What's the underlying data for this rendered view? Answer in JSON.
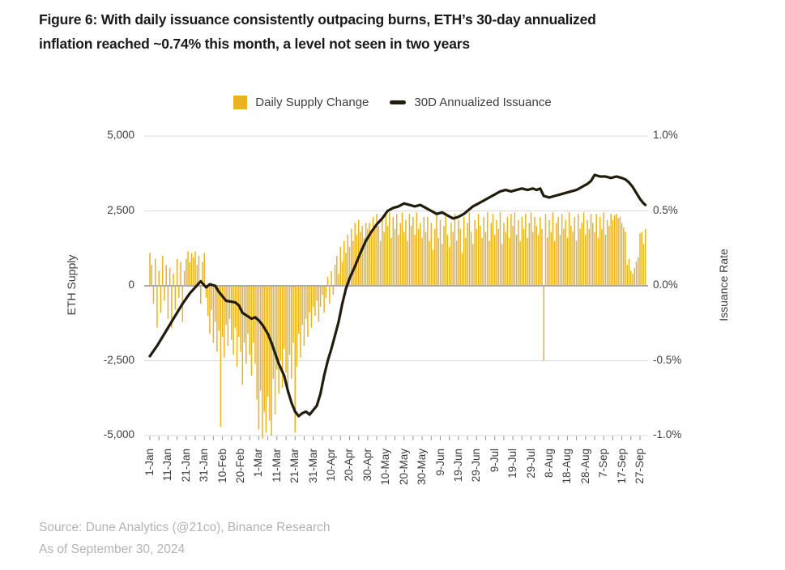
{
  "figure": {
    "title_lines": [
      "Figure 6: With daily issuance consistently outpacing burns, ETH’s 30-day annualized",
      "inflation reached ~0.74% this month, a level not seen in two years"
    ]
  },
  "legend": {
    "items": [
      {
        "label": "Daily Supply Change",
        "swatch": "square",
        "color": "#E9B320"
      },
      {
        "label": "30D Annualized Issuance",
        "swatch": "dash",
        "color": "#221C0D"
      }
    ]
  },
  "source": {
    "line1": "Source: Dune Analytics (@21co), Binance Research",
    "line2": "As of September 30, 2024"
  },
  "chart_data": {
    "type": "bar+line",
    "title": "ETH daily supply change vs 30-day annualized issuance, 1-Jan to 30-Sep 2024",
    "grid": true,
    "legend_position": "top-center",
    "left_axis": {
      "label": "ETH Supply",
      "ticks": [
        "5,000",
        "2,500",
        "0",
        "-2,500",
        "-5,000"
      ],
      "range": [
        -5000,
        5000
      ]
    },
    "right_axis": {
      "label": "Issuance Rate",
      "ticks": [
        "1.0%",
        "0.5%",
        "0.0%",
        "-0.5%",
        "-1.0%"
      ],
      "range": [
        -1.0,
        1.0
      ]
    },
    "x_axis": {
      "tick_labels": [
        "1-Jan",
        "11-Jan",
        "21-Jan",
        "31-Jan",
        "10-Feb",
        "20-Feb",
        "1-Mar",
        "11-Mar",
        "21-Mar",
        "31-Mar",
        "10-Apr",
        "20-Apr",
        "30-Apr",
        "10-May",
        "20-May",
        "30-May",
        "9-Jun",
        "19-Jun",
        "29-Jun",
        "9-Jul",
        "19-Jul",
        "29-Jul",
        "8-Aug",
        "18-Aug",
        "28-Aug",
        "7-Sep",
        "17-Sep",
        "27-Sep"
      ],
      "tick_day_indices": [
        0,
        10,
        20,
        30,
        40,
        50,
        60,
        70,
        80,
        90,
        100,
        110,
        120,
        130,
        140,
        150,
        160,
        170,
        180,
        190,
        200,
        210,
        220,
        230,
        240,
        250,
        260,
        270
      ]
    },
    "bar_series": {
      "name": "Daily Supply Change",
      "axis": "left",
      "unit": "ETH",
      "color": "#E9B320",
      "daily_values": [
        1100,
        700,
        -600,
        900,
        -1400,
        500,
        -900,
        1000,
        -500,
        700,
        -1100,
        600,
        -1400,
        400,
        -800,
        900,
        -400,
        800,
        -1200,
        500,
        900,
        1150,
        800,
        1100,
        950,
        1150,
        700,
        1000,
        -600,
        800,
        1100,
        -400,
        -1000,
        -1600,
        -800,
        -1900,
        -1200,
        -2200,
        -1500,
        -4700,
        -1700,
        -2400,
        -1300,
        -2000,
        -1100,
        -1800,
        -2300,
        -1400,
        -2700,
        -1700,
        -2200,
        -3300,
        -1900,
        -2600,
        -1600,
        -2300,
        -3000,
        -1900,
        -2600,
        -3800,
        -4800,
        -3500,
        -5100,
        -4200,
        -4900,
        -3700,
        -4500,
        -5000,
        -3100,
        -4300,
        -2800,
        -3600,
        -2500,
        -3400,
        -2100,
        -2900,
        -3600,
        -2300,
        -3100,
        -1900,
        -4900,
        -2700,
        -1600,
        -2400,
        -1300,
        -2000,
        -1100,
        -1700,
        -900,
        -1400,
        -700,
        -1000,
        -500,
        -1200,
        -700,
        -300,
        -900,
        -400,
        300,
        -600,
        500,
        -300,
        700,
        1000,
        400,
        1300,
        800,
        1500,
        1100,
        1700,
        1300,
        1900,
        1500,
        2100,
        1700,
        2200,
        1800,
        2000,
        1600,
        2100,
        1900,
        2100,
        1700,
        2300,
        1900,
        2400,
        2000,
        1500,
        2200,
        1800,
        2400,
        2000,
        2450,
        1600,
        2300,
        1900,
        2400,
        1700,
        2100,
        2450,
        1800,
        2200,
        1500,
        2400,
        2000,
        2300,
        1700,
        2450,
        1900,
        2100,
        1600,
        2300,
        1800,
        2300,
        1500,
        2100,
        1200,
        1900,
        2400,
        1600,
        2200,
        1400,
        2000,
        2450,
        1700,
        1300,
        2100,
        1800,
        2400,
        1500,
        2200,
        1900,
        1100,
        2300,
        1600,
        2100,
        2450,
        1800,
        1400,
        2200,
        1900,
        2400,
        2000,
        1600,
        2300,
        1800,
        2450,
        1500,
        2100,
        2400,
        1700,
        2200,
        1900,
        2450,
        1400,
        2100,
        1800,
        2300,
        1600,
        2400,
        2000,
        2450,
        1700,
        2200,
        1500,
        2300,
        1900,
        2400,
        1600,
        2100,
        2450,
        1800,
        2300,
        2000,
        1700,
        2300,
        1900,
        -2500,
        2400,
        1600,
        2200,
        1800,
        2450,
        1500,
        2100,
        2300,
        1700,
        2400,
        1900,
        2200,
        1600,
        2450,
        2000,
        1800,
        2300,
        1500,
        2400,
        1900,
        2100,
        2450,
        1700,
        2200,
        1900,
        2400,
        2100,
        1800,
        2400,
        1600,
        2300,
        1900,
        2450,
        1700,
        2200,
        2000,
        2400,
        2200,
        2350,
        2400,
        2250,
        2300,
        2100,
        1950,
        1800,
        700,
        900,
        500,
        400,
        600,
        800,
        950,
        1750,
        1800,
        1400,
        1900
      ]
    },
    "line_series": {
      "name": "30D Annualized Issuance",
      "axis": "right",
      "unit": "%",
      "color": "#221C0D",
      "peak_value_pct": 0.74,
      "points": [
        [
          0,
          -0.47
        ],
        [
          4,
          -0.4
        ],
        [
          9,
          -0.3
        ],
        [
          13,
          -0.22
        ],
        [
          18,
          -0.12
        ],
        [
          22,
          -0.05
        ],
        [
          25,
          -0.01
        ],
        [
          28,
          0.03
        ],
        [
          31,
          -0.01
        ],
        [
          33,
          0.01
        ],
        [
          36,
          0.0
        ],
        [
          38,
          -0.04
        ],
        [
          42,
          -0.1
        ],
        [
          47,
          -0.11
        ],
        [
          49,
          -0.13
        ],
        [
          51,
          -0.18
        ],
        [
          56,
          -0.22
        ],
        [
          58,
          -0.21
        ],
        [
          60,
          -0.23
        ],
        [
          62,
          -0.26
        ],
        [
          65,
          -0.32
        ],
        [
          67,
          -0.38
        ],
        [
          69,
          -0.45
        ],
        [
          71,
          -0.52
        ],
        [
          74,
          -0.6
        ],
        [
          76,
          -0.7
        ],
        [
          78,
          -0.78
        ],
        [
          80,
          -0.84
        ],
        [
          82,
          -0.87
        ],
        [
          84,
          -0.85
        ],
        [
          86,
          -0.84
        ],
        [
          88,
          -0.86
        ],
        [
          90,
          -0.83
        ],
        [
          92,
          -0.8
        ],
        [
          94,
          -0.72
        ],
        [
          96,
          -0.6
        ],
        [
          98,
          -0.5
        ],
        [
          100,
          -0.42
        ],
        [
          102,
          -0.33
        ],
        [
          104,
          -0.24
        ],
        [
          106,
          -0.12
        ],
        [
          108,
          -0.02
        ],
        [
          110,
          0.05
        ],
        [
          113,
          0.13
        ],
        [
          116,
          0.22
        ],
        [
          119,
          0.3
        ],
        [
          122,
          0.36
        ],
        [
          125,
          0.41
        ],
        [
          128,
          0.45
        ],
        [
          131,
          0.5
        ],
        [
          134,
          0.52
        ],
        [
          137,
          0.53
        ],
        [
          140,
          0.55
        ],
        [
          143,
          0.54
        ],
        [
          146,
          0.53
        ],
        [
          149,
          0.54
        ],
        [
          152,
          0.52
        ],
        [
          155,
          0.5
        ],
        [
          158,
          0.48
        ],
        [
          161,
          0.49
        ],
        [
          164,
          0.47
        ],
        [
          167,
          0.45
        ],
        [
          170,
          0.46
        ],
        [
          173,
          0.48
        ],
        [
          175,
          0.5
        ],
        [
          178,
          0.53
        ],
        [
          181,
          0.55
        ],
        [
          184,
          0.57
        ],
        [
          187,
          0.59
        ],
        [
          190,
          0.61
        ],
        [
          193,
          0.63
        ],
        [
          196,
          0.64
        ],
        [
          199,
          0.63
        ],
        [
          202,
          0.64
        ],
        [
          205,
          0.65
        ],
        [
          208,
          0.64
        ],
        [
          211,
          0.65
        ],
        [
          213,
          0.64
        ],
        [
          215,
          0.65
        ],
        [
          217,
          0.6
        ],
        [
          220,
          0.59
        ],
        [
          223,
          0.6
        ],
        [
          226,
          0.61
        ],
        [
          229,
          0.62
        ],
        [
          232,
          0.63
        ],
        [
          235,
          0.64
        ],
        [
          238,
          0.66
        ],
        [
          241,
          0.68
        ],
        [
          243,
          0.7
        ],
        [
          245,
          0.74
        ],
        [
          248,
          0.73
        ],
        [
          251,
          0.73
        ],
        [
          254,
          0.72
        ],
        [
          257,
          0.73
        ],
        [
          260,
          0.72
        ],
        [
          262,
          0.71
        ],
        [
          264,
          0.69
        ],
        [
          266,
          0.66
        ],
        [
          268,
          0.62
        ],
        [
          270,
          0.58
        ],
        [
          272,
          0.55
        ],
        [
          273,
          0.54
        ]
      ]
    }
  }
}
